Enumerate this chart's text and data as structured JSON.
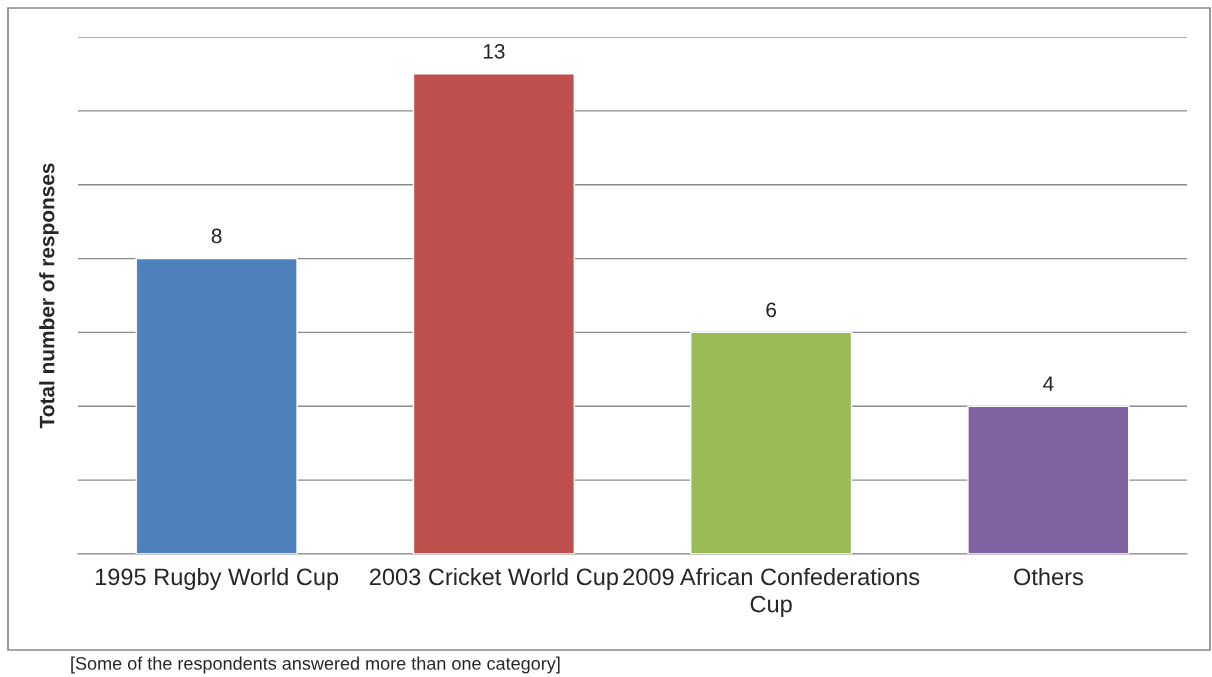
{
  "chart_data": {
    "type": "bar",
    "ylabel": "Total number of responses",
    "categories": [
      "1995 Rugby World Cup",
      "2003 Cricket World Cup",
      "2009 African Confederations Cup",
      "Others"
    ],
    "values": [
      8,
      13,
      6,
      4
    ],
    "colors": [
      "#4f81bd",
      "#c0504d",
      "#9bbb59",
      "#8064a2"
    ],
    "ylim": [
      0,
      14
    ],
    "yticks": [
      {
        "value": 0,
        "label": null
      },
      {
        "value": 2,
        "label": null
      },
      {
        "value": 4,
        "label": null
      },
      {
        "value": 6,
        "label": null
      },
      {
        "value": 8,
        "label": null
      },
      {
        "value": 10,
        "label": null
      },
      {
        "value": 12,
        "label": null
      },
      {
        "value": 14,
        "label": null
      }
    ],
    "grid": "y",
    "tick_labels": "x",
    "data_labels": true,
    "legend": false,
    "annotations": [
      "[Some of the respondents answered more than one category]"
    ]
  }
}
